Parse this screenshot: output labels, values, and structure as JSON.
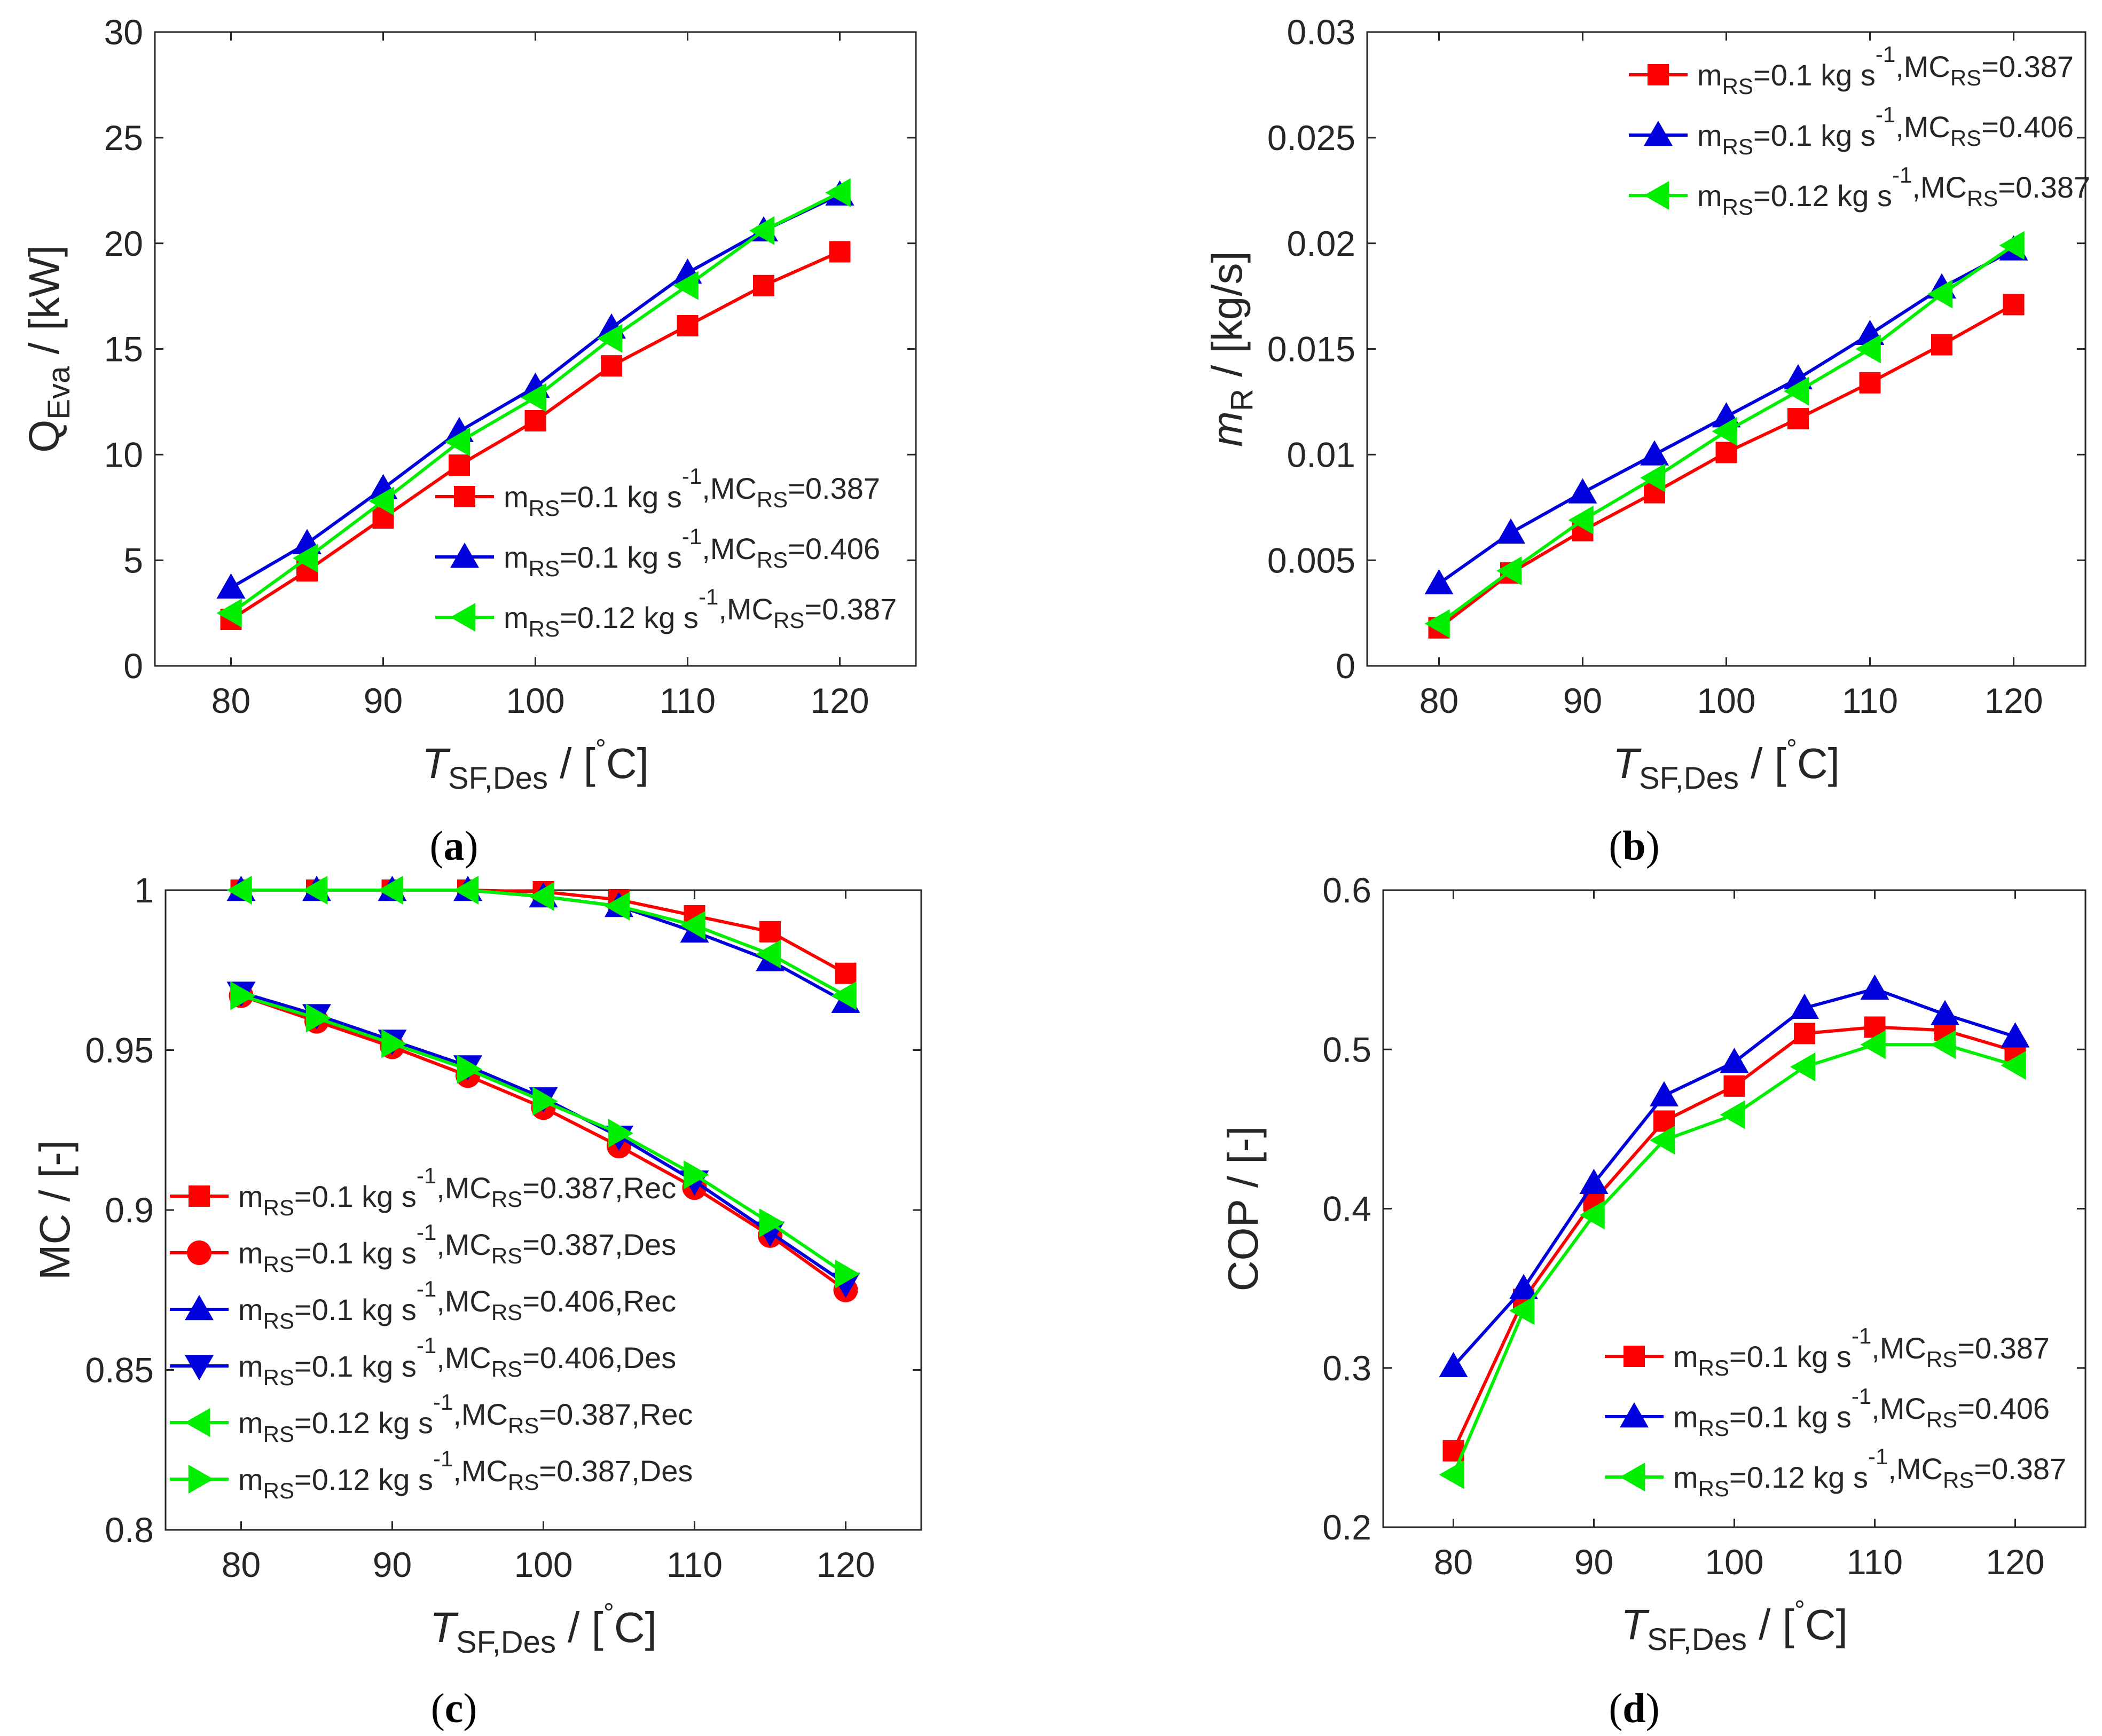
{
  "chart_data": [
    {
      "type": "line",
      "panel": "a",
      "caption": "(a)",
      "ylabel_parts": [
        "Q",
        "Eva",
        " / [kW]"
      ],
      "xlabel_parts": [
        "T",
        "SF,Des",
        " / [",
        "°",
        "C]"
      ],
      "xlim": [
        75,
        125
      ],
      "ylim": [
        0,
        30
      ],
      "xticks": [
        80,
        90,
        100,
        110,
        120
      ],
      "yticks": [
        0,
        5,
        10,
        15,
        20,
        25,
        30
      ],
      "ytick_labels": [
        "0",
        "5",
        "10",
        "15",
        "20",
        "25",
        "30"
      ],
      "legend_position": "lower-right",
      "x": [
        80,
        85,
        90,
        95,
        100,
        105,
        110,
        115,
        120
      ],
      "series": [
        {
          "id": "a1",
          "legend": [
            "m",
            "RS",
            "=0.1 kg s",
            "-1",
            ",MC",
            "RS",
            "=0.387"
          ],
          "color": "#ff0000",
          "marker": "square",
          "values": [
            2.2,
            4.5,
            7.0,
            9.5,
            11.6,
            14.2,
            16.1,
            18.0,
            19.6
          ]
        },
        {
          "id": "a2",
          "legend": [
            "m",
            "RS",
            "=0.1 kg s",
            "-1",
            ",MC",
            "RS",
            "=0.406"
          ],
          "color": "#0000dd",
          "marker": "triangle-up",
          "values": [
            3.7,
            5.8,
            8.4,
            11.1,
            13.2,
            16.0,
            18.6,
            20.6,
            22.3
          ]
        },
        {
          "id": "a3",
          "legend": [
            "m",
            "RS",
            "=0.12 kg s",
            "-1",
            ",MC",
            "RS",
            "=0.387"
          ],
          "color": "#00ee00",
          "marker": "triangle-left",
          "values": [
            2.5,
            5.1,
            7.8,
            10.6,
            12.7,
            15.5,
            18.0,
            20.6,
            22.4
          ]
        }
      ]
    },
    {
      "type": "line",
      "panel": "b",
      "caption": "(b)",
      "ylabel_parts": [
        "m",
        "R",
        " / [kg/s]"
      ],
      "xlabel_parts": [
        "T",
        "SF,Des",
        " / [",
        "°",
        "C]"
      ],
      "xlim": [
        75,
        125
      ],
      "ylim": [
        0,
        0.03
      ],
      "xticks": [
        80,
        90,
        100,
        110,
        120
      ],
      "yticks": [
        0,
        0.005,
        0.01,
        0.015,
        0.02,
        0.025,
        0.03
      ],
      "ytick_labels": [
        "0",
        "0.005",
        "0.01",
        "0.015",
        "0.02",
        "0.025",
        "0.03"
      ],
      "legend_position": "top-right",
      "x": [
        80,
        85,
        90,
        95,
        100,
        105,
        110,
        115,
        120
      ],
      "series": [
        {
          "id": "b1",
          "legend": [
            "m",
            "RS",
            "=0.1 kg s",
            "-1",
            ",MC",
            "RS",
            "=0.387"
          ],
          "color": "#ff0000",
          "marker": "square",
          "values": [
            0.0018,
            0.0044,
            0.0064,
            0.0082,
            0.0101,
            0.0117,
            0.0134,
            0.0152,
            0.0171
          ]
        },
        {
          "id": "b2",
          "legend": [
            "m",
            "RS",
            "=0.1 kg s",
            "-1",
            ",MC",
            "RS",
            "=0.406"
          ],
          "color": "#0000dd",
          "marker": "triangle-up",
          "values": [
            0.0039,
            0.0063,
            0.0082,
            0.01,
            0.0118,
            0.0136,
            0.0157,
            0.0179,
            0.0197
          ]
        },
        {
          "id": "b3",
          "legend": [
            "m",
            "RS",
            "=0.12 kg s",
            "-1",
            ",MC",
            "RS",
            "=0.387"
          ],
          "color": "#00ee00",
          "marker": "triangle-left",
          "values": [
            0.002,
            0.0045,
            0.0069,
            0.0089,
            0.0111,
            0.013,
            0.015,
            0.0176,
            0.0199
          ]
        }
      ]
    },
    {
      "type": "line",
      "panel": "c",
      "caption": "(c)",
      "ylabel_parts": [
        "MC / [-]"
      ],
      "xlabel_parts": [
        "T",
        "SF,Des",
        " / [",
        "°",
        "C]"
      ],
      "xlim": [
        75,
        125
      ],
      "ylim": [
        0.8,
        1.0
      ],
      "xticks": [
        80,
        90,
        100,
        110,
        120
      ],
      "yticks": [
        0.8,
        0.85,
        0.9,
        0.95,
        1.0
      ],
      "ytick_labels": [
        "0.8",
        "0.85",
        "0.9",
        "0.95",
        "1"
      ],
      "legend_position": "lower-left",
      "x": [
        80,
        85,
        90,
        95,
        100,
        105,
        110,
        115,
        120
      ],
      "series": [
        {
          "id": "c1",
          "legend": [
            "m",
            "RS",
            "=0.1 kg s",
            "-1",
            ",MC",
            "RS",
            "=0.387,Rec"
          ],
          "color": "#ff0000",
          "marker": "square",
          "values": [
            1.0,
            1.0,
            1.0,
            1.0,
            0.9995,
            0.997,
            0.992,
            0.987,
            0.974
          ]
        },
        {
          "id": "c2",
          "legend": [
            "m",
            "RS",
            "=0.1 kg s",
            "-1",
            ",MC",
            "RS",
            "=0.387,Des"
          ],
          "color": "#ff0000",
          "marker": "circle",
          "values": [
            0.967,
            0.959,
            0.951,
            0.942,
            0.932,
            0.92,
            0.907,
            0.892,
            0.875
          ]
        },
        {
          "id": "c3",
          "legend": [
            "m",
            "RS",
            "=0.1 kg s",
            "-1",
            ",MC",
            "RS",
            "=0.406,Rec"
          ],
          "color": "#0000dd",
          "marker": "triangle-up",
          "values": [
            1.0,
            1.0,
            1.0,
            1.0,
            0.998,
            0.995,
            0.987,
            0.978,
            0.965
          ]
        },
        {
          "id": "c4",
          "legend": [
            "m",
            "RS",
            "=0.1 kg s",
            "-1",
            ",MC",
            "RS",
            "=0.406,Des"
          ],
          "color": "#0000dd",
          "marker": "triangle-down",
          "values": [
            0.968,
            0.961,
            0.953,
            0.945,
            0.935,
            0.923,
            0.909,
            0.893,
            0.877
          ]
        },
        {
          "id": "c5",
          "legend": [
            "m",
            "RS",
            "=0.12 kg s",
            "-1",
            ",MC",
            "RS",
            "=0.387,Rec"
          ],
          "color": "#00ee00",
          "marker": "triangle-left",
          "values": [
            1.0,
            1.0,
            1.0,
            1.0,
            0.998,
            0.995,
            0.989,
            0.98,
            0.967
          ]
        },
        {
          "id": "c6",
          "legend": [
            "m",
            "RS",
            "=0.12 kg s",
            "-1",
            ",MC",
            "RS",
            "=0.387,Des"
          ],
          "color": "#00ee00",
          "marker": "triangle-right",
          "values": [
            0.967,
            0.96,
            0.952,
            0.944,
            0.934,
            0.924,
            0.911,
            0.896,
            0.88
          ]
        }
      ]
    },
    {
      "type": "line",
      "panel": "d",
      "caption": "(d)",
      "ylabel_parts": [
        "COP / [-]"
      ],
      "xlabel_parts": [
        "T",
        "SF,Des",
        " / [",
        "°",
        "C]"
      ],
      "xlim": [
        75,
        125
      ],
      "ylim": [
        0.2,
        0.6
      ],
      "xticks": [
        80,
        90,
        100,
        110,
        120
      ],
      "yticks": [
        0.2,
        0.3,
        0.4,
        0.5,
        0.6
      ],
      "ytick_labels": [
        "0.2",
        "0.3",
        "0.4",
        "0.5",
        "0.6"
      ],
      "legend_position": "lower-right",
      "x": [
        80,
        85,
        90,
        95,
        100,
        105,
        110,
        115,
        120
      ],
      "series": [
        {
          "id": "d1",
          "legend": [
            "m",
            "RS",
            "=0.1 kg s",
            "-1",
            ",MC",
            "RS",
            "=0.387"
          ],
          "color": "#ff0000",
          "marker": "square",
          "values": [
            0.248,
            0.343,
            0.405,
            0.455,
            0.477,
            0.51,
            0.514,
            0.512,
            0.499
          ]
        },
        {
          "id": "d2",
          "legend": [
            "m",
            "RS",
            "=0.1 kg s",
            "-1",
            ",MC",
            "RS",
            "=0.406"
          ],
          "color": "#0000dd",
          "marker": "triangle-up",
          "values": [
            0.301,
            0.35,
            0.416,
            0.471,
            0.492,
            0.526,
            0.538,
            0.522,
            0.508
          ]
        },
        {
          "id": "d3",
          "legend": [
            "m",
            "RS",
            "=0.12 kg s",
            "-1",
            ",MC",
            "RS",
            "=0.387"
          ],
          "color": "#00ee00",
          "marker": "triangle-left",
          "values": [
            0.233,
            0.336,
            0.396,
            0.443,
            0.459,
            0.489,
            0.503,
            0.503,
            0.49
          ]
        }
      ]
    }
  ]
}
